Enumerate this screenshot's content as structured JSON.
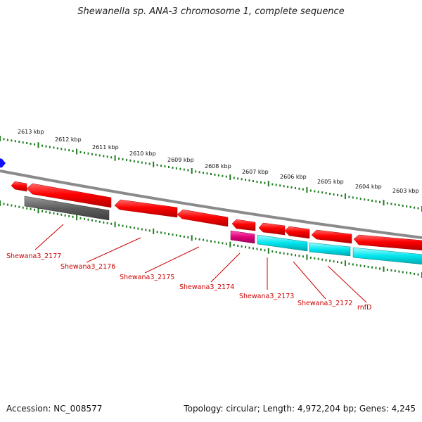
{
  "title": "Shewanella sp. ANA-3 chromosome 1, complete sequence",
  "footer": {
    "accession": "Accession: NC_008577",
    "topology": "Topology: circular; Length: 4,972,204 bp; Genes: 4,245"
  },
  "ticks": [
    {
      "label": "2613 kbp"
    },
    {
      "label": "2612 kbp"
    },
    {
      "label": "2611 kbp"
    },
    {
      "label": "2610 kbp"
    },
    {
      "label": "2609 kbp"
    },
    {
      "label": "2608 kbp"
    },
    {
      "label": "2607 kbp"
    },
    {
      "label": "2606 kbp"
    },
    {
      "label": "2605 kbp"
    },
    {
      "label": "2604 kbp"
    },
    {
      "label": "2603 kbp"
    }
  ],
  "gene_labels": [
    {
      "text": "Shewana3_2177"
    },
    {
      "text": "Shewana3_2176"
    },
    {
      "text": "Shewana3_2175"
    },
    {
      "text": "Shewana3_2174"
    },
    {
      "text": "Shewana3_2173"
    },
    {
      "text": "Shewana3_2172"
    },
    {
      "text": "rnfD"
    }
  ],
  "colors": {
    "cds": "#ff0000",
    "rna": "#606060",
    "pseudo": "#e0007a",
    "other": "#00e5ee",
    "label": "#cc0000",
    "tick": "#1e7d1e",
    "backbone": "#8a8a8a",
    "marker": "#1010ff"
  }
}
